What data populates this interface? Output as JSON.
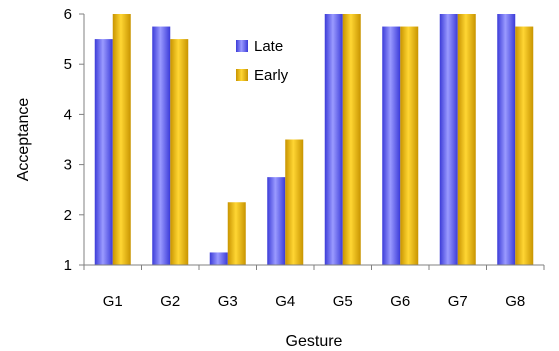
{
  "chart_data": {
    "type": "bar",
    "title": "",
    "xlabel": "Gesture",
    "ylabel": "Acceptance",
    "categories": [
      "G1",
      "G2",
      "G3",
      "G4",
      "G5",
      "G6",
      "G7",
      "G8"
    ],
    "series": [
      {
        "name": "Late",
        "color": "#5a5ae6",
        "values": [
          5.5,
          5.75,
          1.25,
          2.75,
          6.0,
          5.75,
          6.0,
          6.0
        ]
      },
      {
        "name": "Early",
        "color": "#e6b400",
        "values": [
          6.0,
          5.5,
          2.25,
          3.5,
          6.0,
          5.75,
          6.0,
          5.75
        ]
      }
    ],
    "ylim": [
      1,
      6
    ],
    "yticks": [
      1,
      2,
      3,
      4,
      5,
      6
    ],
    "grid": false,
    "legend_position": "top-center"
  }
}
